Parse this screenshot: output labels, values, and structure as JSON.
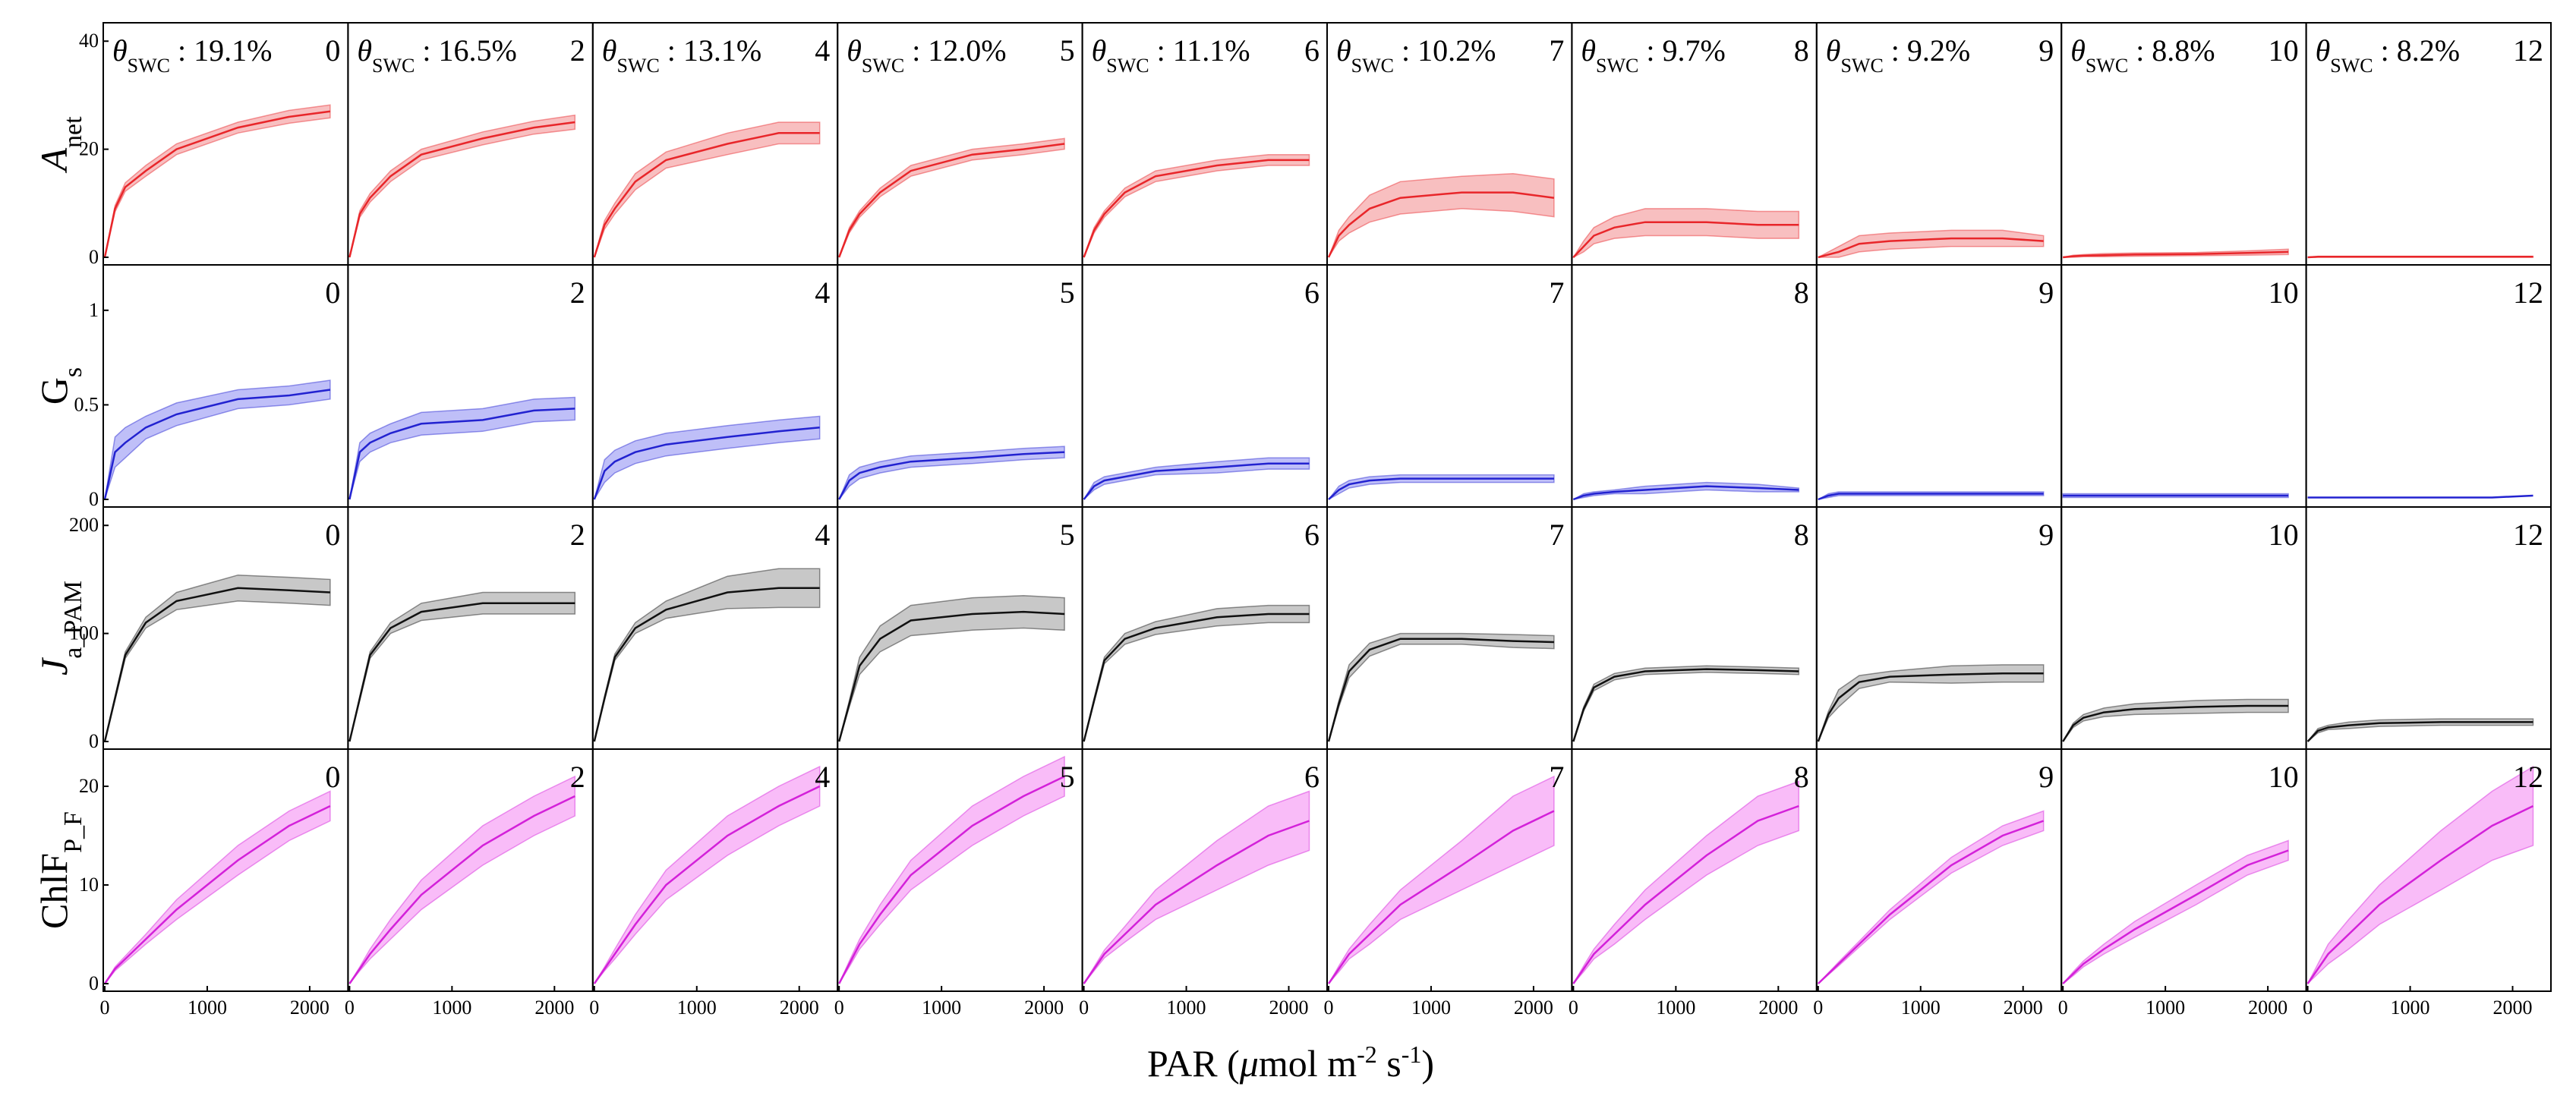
{
  "figure": {
    "xlabel_prefix": "PAR (",
    "xlabel_mu": "μ",
    "xlabel_mid": "mol m",
    "xlabel_sup1": "-2",
    "xlabel_mid2": " s",
    "xlabel_sup2": "-1",
    "xlabel_suffix": ")"
  },
  "chart_data": {
    "type": "line",
    "layout": "small-multiples 4 rows x 10 columns, shaded band = spread around mean",
    "x": [
      0,
      100,
      200,
      400,
      700,
      1300,
      1800,
      2200
    ],
    "xlim": [
      0,
      2300
    ],
    "xticks": [
      "0",
      "1000",
      "2000"
    ],
    "grid": false,
    "columns": [
      {
        "day": "0",
        "swc": "19.1%"
      },
      {
        "day": "2",
        "swc": "16.5%"
      },
      {
        "day": "4",
        "swc": "13.1%"
      },
      {
        "day": "5",
        "swc": "12.0%"
      },
      {
        "day": "6",
        "swc": "11.1%"
      },
      {
        "day": "7",
        "swc": "10.2%"
      },
      {
        "day": "8",
        "swc": "9.7%"
      },
      {
        "day": "9",
        "swc": "9.2%"
      },
      {
        "day": "10",
        "swc": "8.8%"
      },
      {
        "day": "12",
        "swc": "8.2%"
      }
    ],
    "swc_symbol": "θ",
    "swc_sub": "SWC",
    "swc_sep": " : ",
    "rows": [
      {
        "id": "anet",
        "ylabel_main": "A",
        "ylabel_sub": "net",
        "ylabel_italic": true,
        "ylim": [
          0,
          42
        ],
        "yticks": [
          "0",
          "20",
          "40"
        ],
        "ytick_values": [
          0,
          20,
          40
        ],
        "color": "#e8262a",
        "fill": "#f6a9ab",
        "series": [
          {
            "mean": [
              0,
              9,
              13,
              16,
              20,
              24,
              26,
              27
            ],
            "spread": [
              0,
              0.6,
              0.8,
              1,
              1,
              1,
              1.2,
              1.2
            ]
          },
          {
            "mean": [
              0,
              8,
              11,
              15,
              19,
              22,
              24,
              25
            ],
            "spread": [
              0,
              0.6,
              0.8,
              1,
              1,
              1.2,
              1.2,
              1.3
            ]
          },
          {
            "mean": [
              0,
              6,
              9,
              14,
              18,
              21,
              23,
              23
            ],
            "spread": [
              0,
              0.8,
              1,
              1.5,
              1.5,
              2,
              2,
              2
            ]
          },
          {
            "mean": [
              0,
              5,
              8,
              12,
              16,
              19,
              20,
              21
            ],
            "spread": [
              0,
              0.5,
              0.6,
              0.8,
              1,
              1,
              1,
              1
            ]
          },
          {
            "mean": [
              0,
              5,
              8,
              12,
              15,
              17,
              18,
              18
            ],
            "spread": [
              0,
              0.5,
              0.6,
              0.8,
              1,
              1,
              1,
              1
            ]
          },
          {
            "mean": [
              0,
              4,
              6,
              9,
              11,
              12,
              12,
              11
            ],
            "spread": [
              0,
              1,
              1.5,
              2.5,
              3,
              3,
              3.5,
              3.5
            ]
          },
          {
            "mean": [
              0,
              2,
              4,
              5.5,
              6.5,
              6.5,
              6,
              6
            ],
            "spread": [
              0,
              1,
              1.5,
              2,
              2.5,
              2.5,
              2.5,
              2.5
            ]
          },
          {
            "mean": [
              0,
              0.5,
              1,
              2.5,
              3,
              3.5,
              3.5,
              3
            ],
            "spread": [
              0,
              0.5,
              1,
              1.5,
              1.5,
              1.5,
              1.5,
              1
            ]
          },
          {
            "mean": [
              0,
              0.2,
              0.3,
              0.4,
              0.5,
              0.6,
              0.8,
              1
            ],
            "spread": [
              0,
              0.2,
              0.2,
              0.3,
              0.3,
              0.3,
              0.4,
              0.5
            ]
          },
          {
            "mean": [
              0,
              0.1,
              0.1,
              0.1,
              0.1,
              0.1,
              0.1,
              0.1
            ],
            "spread": [
              0,
              0.1,
              0.1,
              0.1,
              0.1,
              0.1,
              0.1,
              0.1
            ]
          }
        ]
      },
      {
        "id": "gs",
        "ylabel_main": "G",
        "ylabel_sub": "s",
        "ylabel_italic": false,
        "ylim": [
          0,
          1.2
        ],
        "yticks": [
          "0",
          "0.5",
          "1"
        ],
        "ytick_values": [
          0,
          0.5,
          1
        ],
        "color": "#2222d0",
        "fill": "#a9a9f5",
        "series": [
          {
            "mean": [
              0,
              0.25,
              0.3,
              0.38,
              0.45,
              0.53,
              0.55,
              0.58
            ],
            "spread": [
              0,
              0.08,
              0.08,
              0.06,
              0.06,
              0.05,
              0.05,
              0.05
            ]
          },
          {
            "mean": [
              0,
              0.25,
              0.3,
              0.35,
              0.4,
              0.42,
              0.47,
              0.48
            ],
            "spread": [
              0,
              0.05,
              0.05,
              0.05,
              0.06,
              0.06,
              0.06,
              0.06
            ]
          },
          {
            "mean": [
              0,
              0.15,
              0.2,
              0.25,
              0.29,
              0.33,
              0.36,
              0.38
            ],
            "spread": [
              0,
              0.06,
              0.06,
              0.06,
              0.06,
              0.06,
              0.06,
              0.06
            ]
          },
          {
            "mean": [
              0,
              0.1,
              0.14,
              0.17,
              0.2,
              0.22,
              0.24,
              0.25
            ],
            "spread": [
              0,
              0.03,
              0.03,
              0.03,
              0.03,
              0.03,
              0.03,
              0.03
            ]
          },
          {
            "mean": [
              0,
              0.07,
              0.1,
              0.12,
              0.15,
              0.17,
              0.19,
              0.19
            ],
            "spread": [
              0,
              0.02,
              0.02,
              0.02,
              0.02,
              0.03,
              0.03,
              0.03
            ]
          },
          {
            "mean": [
              0,
              0.05,
              0.08,
              0.1,
              0.11,
              0.11,
              0.11,
              0.11
            ],
            "spread": [
              0,
              0.02,
              0.02,
              0.02,
              0.02,
              0.02,
              0.02,
              0.02
            ]
          },
          {
            "mean": [
              0,
              0.02,
              0.03,
              0.04,
              0.05,
              0.07,
              0.06,
              0.05
            ],
            "spread": [
              0,
              0.01,
              0.01,
              0.01,
              0.02,
              0.02,
              0.02,
              0.01
            ]
          },
          {
            "mean": [
              0,
              0.02,
              0.03,
              0.03,
              0.03,
              0.03,
              0.03,
              0.03
            ],
            "spread": [
              0,
              0.01,
              0.01,
              0.01,
              0.01,
              0.01,
              0.01,
              0.01
            ]
          },
          {
            "mean": [
              0.02,
              0.02,
              0.02,
              0.02,
              0.02,
              0.02,
              0.02,
              0.02
            ],
            "spread": [
              0.01,
              0.01,
              0.01,
              0.01,
              0.01,
              0.01,
              0.01,
              0.01
            ]
          },
          {
            "mean": [
              0.01,
              0.01,
              0.01,
              0.01,
              0.01,
              0.01,
              0.01,
              0.02
            ],
            "spread": [
              0,
              0,
              0,
              0,
              0,
              0,
              0,
              0
            ]
          }
        ]
      },
      {
        "id": "ja",
        "ylabel_main": "J",
        "ylabel_sub": "a_PAM",
        "ylabel_italic": true,
        "ylim": [
          0,
          210
        ],
        "yticks": [
          "0",
          "100",
          "200"
        ],
        "ytick_values": [
          0,
          100,
          200
        ],
        "color": "#111111",
        "fill": "#b5b5b5",
        "series": [
          {
            "mean": [
              0,
              40,
              80,
              110,
              130,
              142,
              140,
              138
            ],
            "spread": [
              0,
              2,
              3,
              5,
              8,
              12,
              12,
              12
            ]
          },
          {
            "mean": [
              0,
              40,
              80,
              105,
              120,
              128,
              128,
              128
            ],
            "spread": [
              0,
              2,
              3,
              5,
              8,
              10,
              10,
              10
            ]
          },
          {
            "mean": [
              0,
              40,
              78,
              105,
              122,
              138,
              142,
              142
            ],
            "spread": [
              0,
              2,
              3,
              5,
              8,
              15,
              18,
              18
            ]
          },
          {
            "mean": [
              0,
              35,
              70,
              95,
              112,
              118,
              120,
              118
            ],
            "spread": [
              0,
              3,
              8,
              12,
              14,
              15,
              15,
              15
            ]
          },
          {
            "mean": [
              0,
              38,
              75,
              95,
              105,
              115,
              118,
              118
            ],
            "spread": [
              0,
              2,
              3,
              5,
              6,
              8,
              8,
              8
            ]
          },
          {
            "mean": [
              0,
              35,
              65,
              85,
              95,
              95,
              93,
              92
            ],
            "spread": [
              0,
              3,
              6,
              6,
              5,
              5,
              6,
              6
            ]
          },
          {
            "mean": [
              0,
              30,
              50,
              60,
              65,
              67,
              66,
              65
            ],
            "spread": [
              0,
              2,
              3,
              3,
              3,
              3,
              3,
              3
            ]
          },
          {
            "mean": [
              0,
              25,
              40,
              55,
              60,
              62,
              63,
              63
            ],
            "spread": [
              0,
              3,
              8,
              6,
              5,
              8,
              8,
              8
            ]
          },
          {
            "mean": [
              0,
              15,
              22,
              27,
              30,
              32,
              33,
              33
            ],
            "spread": [
              0,
              2,
              3,
              4,
              5,
              6,
              6,
              6
            ]
          },
          {
            "mean": [
              0,
              10,
              13,
              15,
              17,
              18,
              18,
              18
            ],
            "spread": [
              0,
              2,
              2,
              3,
              3,
              3,
              3,
              3
            ]
          }
        ]
      },
      {
        "id": "chlf",
        "ylabel_main": "ChlF",
        "ylabel_sub": "P_F",
        "ylabel_italic": false,
        "ylim": [
          0,
          23
        ],
        "yticks": [
          "0",
          "10",
          "20"
        ],
        "ytick_values": [
          0,
          10,
          20
        ],
        "color": "#d321d9",
        "fill": "#f7a6f6",
        "series": [
          {
            "mean": [
              0,
              1.5,
              2.5,
              4.5,
              7.5,
              12.5,
              16,
              18
            ],
            "spread": [
              0,
              0.2,
              0.3,
              0.5,
              1,
              1.5,
              1.5,
              1.5
            ]
          },
          {
            "mean": [
              0,
              1.5,
              3,
              5.5,
              9,
              14,
              17,
              19
            ],
            "spread": [
              0,
              0.2,
              0.5,
              1,
              1.5,
              2,
              2,
              2
            ]
          },
          {
            "mean": [
              0,
              1.5,
              3,
              6,
              10,
              15,
              18,
              20
            ],
            "spread": [
              0,
              0.2,
              0.5,
              1,
              1.5,
              2,
              2,
              2
            ]
          },
          {
            "mean": [
              0,
              2,
              4,
              7,
              11,
              16,
              19,
              21
            ],
            "spread": [
              0,
              0.3,
              0.5,
              1,
              1.5,
              2,
              2,
              2
            ]
          },
          {
            "mean": [
              0,
              1.5,
              3,
              5,
              8,
              12,
              15,
              16.5
            ],
            "spread": [
              0,
              0.2,
              0.4,
              0.8,
              1.5,
              2.5,
              3,
              3
            ]
          },
          {
            "mean": [
              0,
              1.5,
              3,
              5,
              8,
              12,
              15.5,
              17.5
            ],
            "spread": [
              0,
              0.3,
              0.5,
              1,
              1.5,
              2.5,
              3.5,
              3.5
            ]
          },
          {
            "mean": [
              0,
              1.5,
              3,
              5,
              8,
              13,
              16.5,
              18
            ],
            "spread": [
              0,
              0.3,
              0.5,
              1,
              1.5,
              2,
              2.5,
              2.5
            ]
          },
          {
            "mean": [
              0,
              1,
              2,
              4,
              7,
              12,
              15,
              16.5
            ],
            "spread": [
              0,
              0.1,
              0.2,
              0.3,
              0.5,
              0.8,
              1,
              1
            ]
          },
          {
            "mean": [
              0,
              1,
              2,
              3.5,
              5.5,
              9,
              12,
              13.5
            ],
            "spread": [
              0,
              0.2,
              0.3,
              0.5,
              0.8,
              1,
              1,
              1
            ]
          },
          {
            "mean": [
              0,
              1.5,
              3,
              5,
              8,
              12.5,
              16,
              18
            ],
            "spread": [
              0,
              0.5,
              1,
              1.5,
              2,
              3,
              3.5,
              4
            ]
          }
        ]
      }
    ]
  }
}
